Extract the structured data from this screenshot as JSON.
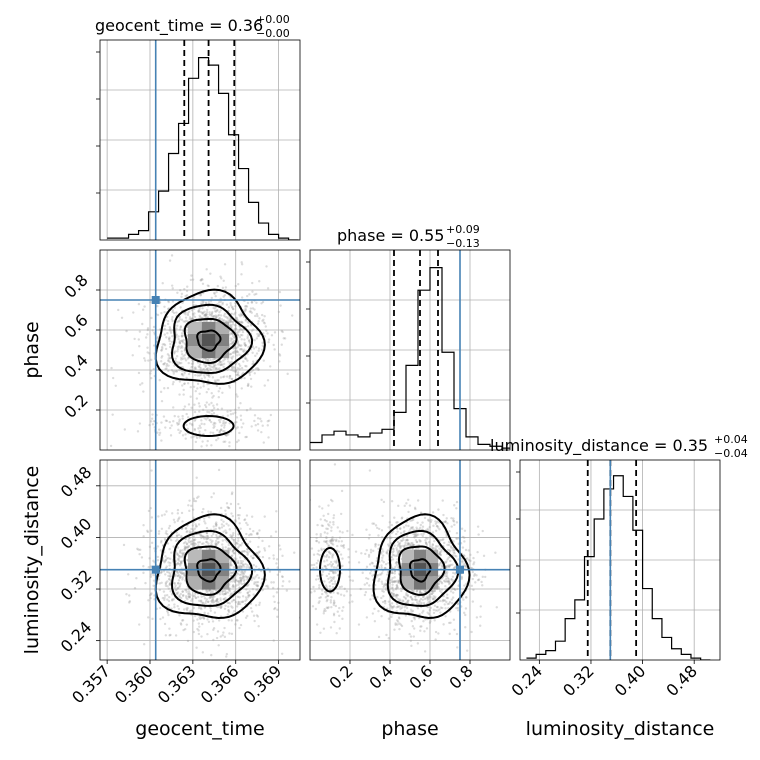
{
  "chart_data": {
    "type": "corner",
    "parameters": [
      "geocent_time",
      "phase",
      "luminosity_distance"
    ],
    "titles": [
      {
        "param": "geocent_time",
        "text": "geocent_time = 0.36",
        "plus": "+0.00",
        "minus": "−0.00"
      },
      {
        "param": "phase",
        "text": "phase = 0.55",
        "plus": "+0.09",
        "minus": "−0.13"
      },
      {
        "param": "luminosity_distance",
        "text": "luminosity_distance = 0.35",
        "plus": "+0.04",
        "minus": "−0.04"
      }
    ],
    "axis_labels": {
      "x": [
        "geocent_time",
        "phase",
        "luminosity_distance"
      ],
      "y": [
        "phase",
        "luminosity_distance"
      ]
    },
    "ranges": {
      "geocent_time": [
        0.3565,
        0.3705
      ],
      "phase": [
        0.0,
        1.0
      ],
      "luminosity_distance": [
        0.21,
        0.52
      ]
    },
    "ticks": {
      "geocent_time": [
        "0.357",
        "0.360",
        "0.363",
        "0.366",
        "0.369"
      ],
      "phase": [
        "0.2",
        "0.4",
        "0.6",
        "0.8"
      ],
      "luminosity_distance": [
        "0.24",
        "0.32",
        "0.40",
        "0.48"
      ]
    },
    "tick_values": {
      "geocent_time": [
        0.357,
        0.36,
        0.363,
        0.366,
        0.369
      ],
      "phase": [
        0.2,
        0.4,
        0.6,
        0.8
      ],
      "luminosity_distance": [
        0.24,
        0.32,
        0.4,
        0.48
      ]
    },
    "truths": {
      "geocent_time": 0.3604,
      "phase": 0.75,
      "luminosity_distance": 0.35
    },
    "quantiles": {
      "geocent_time": [
        0.3624,
        0.3641,
        0.3659
      ],
      "phase": [
        0.42,
        0.55,
        0.64
      ],
      "luminosity_distance": [
        0.315,
        0.35,
        0.39
      ]
    },
    "histograms": {
      "geocent_time": {
        "edges": [
          0.357,
          0.3578,
          0.3585,
          0.3592,
          0.3599,
          0.3606,
          0.3613,
          0.362,
          0.3627,
          0.3634,
          0.3641,
          0.3648,
          0.3655,
          0.3662,
          0.3669,
          0.3676,
          0.3683,
          0.369,
          0.3697,
          0.3704
        ],
        "counts": [
          0.01,
          0.01,
          0.03,
          0.05,
          0.15,
          0.26,
          0.46,
          0.62,
          0.86,
          0.97,
          0.93,
          0.78,
          0.56,
          0.38,
          0.2,
          0.09,
          0.03,
          0.01,
          0.0
        ]
      },
      "phase": {
        "edges": [
          0.0,
          0.06,
          0.12,
          0.18,
          0.24,
          0.3,
          0.36,
          0.42,
          0.48,
          0.54,
          0.6,
          0.66,
          0.72,
          0.78,
          0.84,
          0.9,
          0.96,
          1.0
        ],
        "counts": [
          0.04,
          0.08,
          0.1,
          0.08,
          0.07,
          0.09,
          0.11,
          0.2,
          0.45,
          0.85,
          0.97,
          0.52,
          0.22,
          0.07,
          0.03,
          0.02,
          0.01
        ]
      },
      "luminosity_distance": {
        "edges": [
          0.22,
          0.235,
          0.25,
          0.265,
          0.28,
          0.295,
          0.31,
          0.325,
          0.34,
          0.355,
          0.37,
          0.385,
          0.4,
          0.415,
          0.43,
          0.445,
          0.46,
          0.475,
          0.49,
          0.505
        ],
        "counts": [
          0.01,
          0.03,
          0.05,
          0.1,
          0.22,
          0.32,
          0.55,
          0.75,
          0.91,
          0.98,
          0.87,
          0.69,
          0.38,
          0.22,
          0.12,
          0.06,
          0.03,
          0.01,
          0.0
        ]
      }
    },
    "grid": true
  }
}
